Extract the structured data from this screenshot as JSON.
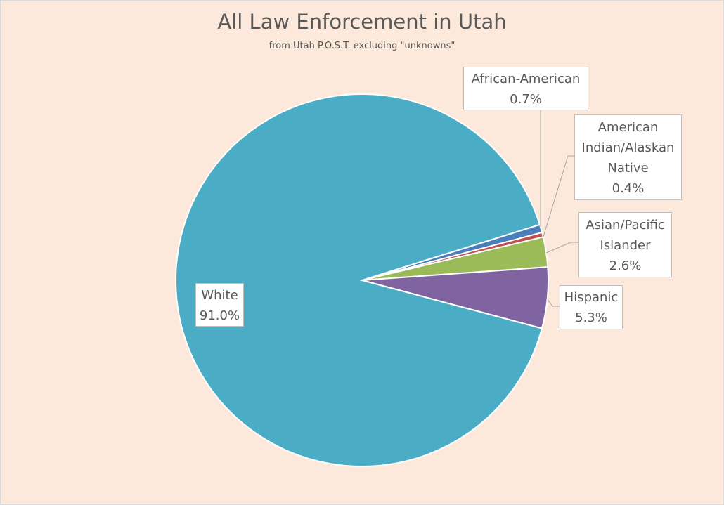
{
  "chart_data": {
    "type": "pie",
    "title": "All Law Enforcement in Utah",
    "subtitle": "from Utah P.O.S.T. excluding \"unknowns\"",
    "slices": [
      {
        "label": "African-American",
        "value": 0.7,
        "value_label": "0.7%",
        "color": "#4a7ebb"
      },
      {
        "label": "American Indian/Alaskan Native",
        "label_lines": [
          "American",
          "Indian/Alaskan",
          "Native"
        ],
        "value": 0.4,
        "value_label": "0.4%",
        "color": "#c0504d"
      },
      {
        "label": "Asian/Pacific Islander",
        "label_lines": [
          "Asian/Pacific",
          "Islander"
        ],
        "value": 2.6,
        "value_label": "2.6%",
        "color": "#9bbb59"
      },
      {
        "label": "Hispanic",
        "value": 5.3,
        "value_label": "5.3%",
        "color": "#8064a2"
      },
      {
        "label": "White",
        "value": 91.0,
        "value_label": "91.0%",
        "color": "#4bacc6"
      }
    ],
    "legend": "none"
  }
}
